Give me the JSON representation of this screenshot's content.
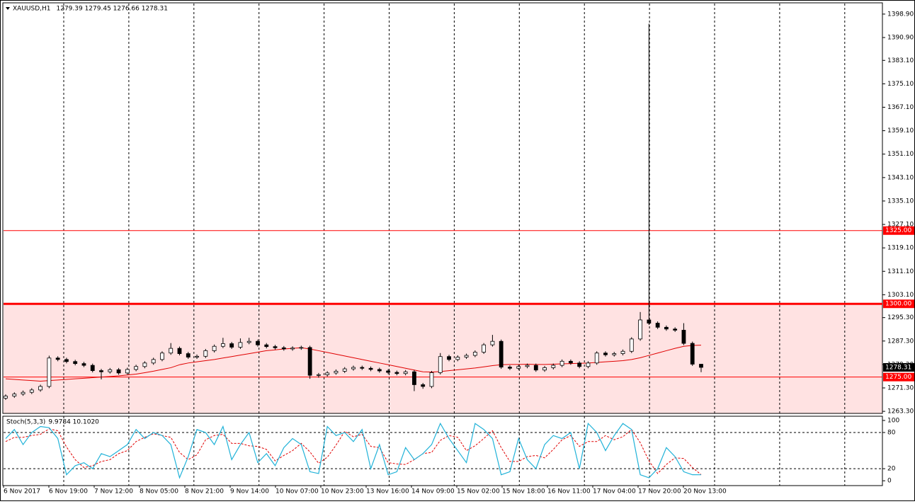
{
  "chart_data": {
    "type": "candlestick",
    "symbol": "XAUUSD,H1",
    "ohlc_text": "1279.39 1279.45 1276.66 1278.31",
    "bull_color": "#ffffff",
    "bear_color": "#000000",
    "ylim": [
      1262.6,
      1402.5
    ],
    "yticks": [
      {
        "value": 1398.9,
        "label": "1398.90"
      },
      {
        "value": 1390.9,
        "label": "1390.90"
      },
      {
        "value": 1383.1,
        "label": "1383.10"
      },
      {
        "value": 1375.1,
        "label": "1375.10"
      },
      {
        "value": 1367.1,
        "label": "1367.10"
      },
      {
        "value": 1359.1,
        "label": "1359.10"
      },
      {
        "value": 1351.1,
        "label": "1351.10"
      },
      {
        "value": 1343.1,
        "label": "1343.10"
      },
      {
        "value": 1335.1,
        "label": "1335.10"
      },
      {
        "value": 1327.1,
        "label": "1327.10"
      },
      {
        "value": 1319.1,
        "label": "1319.10"
      },
      {
        "value": 1311.1,
        "label": "1311.10"
      },
      {
        "value": 1303.1,
        "label": "1303.10"
      },
      {
        "value": 1295.3,
        "label": "1295.30"
      },
      {
        "value": 1287.3,
        "label": "1287.30"
      },
      {
        "value": 1279.3,
        "label": "1279.30"
      },
      {
        "value": 1271.3,
        "label": "1271.30"
      },
      {
        "value": 1263.3,
        "label": "1263.30"
      }
    ],
    "levels": [
      {
        "value": 1325,
        "label": "1325.00",
        "color": "#ff0000",
        "bold": false
      },
      {
        "value": 1300,
        "label": "1300.00",
        "color": "#ff0000",
        "bold": true
      },
      {
        "value": 1275,
        "label": "1275.00",
        "color": "#ff0000",
        "bold": false
      }
    ],
    "shaded_zone": {
      "top": 1300,
      "color": "#ffe2e2"
    },
    "last_price": {
      "value": 1278.31,
      "label": "1278.31"
    },
    "ma_color": "#e00000",
    "candles": [
      [
        1267.8,
        1269.1,
        1267.2,
        1268.5
      ],
      [
        1268.5,
        1269.8,
        1267.9,
        1269.2
      ],
      [
        1269.2,
        1270.4,
        1268.6,
        1269.8
      ],
      [
        1269.8,
        1271.2,
        1269.2,
        1270.6
      ],
      [
        1270.6,
        1272.4,
        1270.0,
        1271.8
      ],
      [
        1271.8,
        1282.3,
        1271.2,
        1281.5
      ],
      [
        1281.5,
        1282.1,
        1280.4,
        1281.0
      ],
      [
        1281.0,
        1281.6,
        1279.7,
        1280.3
      ],
      [
        1280.3,
        1280.9,
        1279.0,
        1279.6
      ],
      [
        1279.6,
        1280.2,
        1278.4,
        1279.0
      ],
      [
        1279.0,
        1279.6,
        1276.6,
        1277.2
      ],
      [
        1277.2,
        1277.8,
        1274.2,
        1276.8
      ],
      [
        1276.8,
        1278.1,
        1276.2,
        1277.5
      ],
      [
        1277.5,
        1278.1,
        1275.8,
        1276.4
      ],
      [
        1276.4,
        1278.2,
        1275.8,
        1277.6
      ],
      [
        1277.6,
        1279.2,
        1277.0,
        1278.6
      ],
      [
        1278.6,
        1280.4,
        1278.0,
        1279.8
      ],
      [
        1279.8,
        1281.6,
        1279.2,
        1281.0
      ],
      [
        1281.0,
        1283.8,
        1280.4,
        1283.2
      ],
      [
        1283.2,
        1286.6,
        1282.6,
        1284.8
      ],
      [
        1284.8,
        1285.4,
        1282.4,
        1283.0
      ],
      [
        1283.0,
        1283.6,
        1281.2,
        1281.8
      ],
      [
        1281.8,
        1282.7,
        1281.2,
        1282.1
      ],
      [
        1282.1,
        1284.6,
        1281.5,
        1284.0
      ],
      [
        1284.0,
        1286.1,
        1283.4,
        1285.5
      ],
      [
        1285.5,
        1288.4,
        1284.9,
        1286.4
      ],
      [
        1286.4,
        1287.0,
        1284.6,
        1285.2
      ],
      [
        1285.2,
        1288.2,
        1284.6,
        1286.8
      ],
      [
        1286.8,
        1288.4,
        1286.2,
        1287.2
      ],
      [
        1287.2,
        1287.8,
        1285.4,
        1286.0
      ],
      [
        1286.0,
        1286.6,
        1284.8,
        1285.4
      ],
      [
        1285.4,
        1286.0,
        1284.4,
        1285.0
      ],
      [
        1285.0,
        1285.6,
        1284.0,
        1284.6
      ],
      [
        1284.6,
        1285.5,
        1284.0,
        1284.9
      ],
      [
        1284.9,
        1285.7,
        1284.3,
        1285.1
      ],
      [
        1285.1,
        1285.7,
        1274.4,
        1275.6
      ],
      [
        1275.6,
        1276.4,
        1274.8,
        1275.8
      ],
      [
        1275.8,
        1277.0,
        1275.2,
        1276.4
      ],
      [
        1276.4,
        1277.6,
        1275.8,
        1277.0
      ],
      [
        1277.0,
        1278.4,
        1276.4,
        1277.8
      ],
      [
        1277.8,
        1278.9,
        1277.2,
        1278.3
      ],
      [
        1278.3,
        1278.9,
        1277.4,
        1278.0
      ],
      [
        1278.0,
        1278.6,
        1277.0,
        1277.6
      ],
      [
        1277.6,
        1278.2,
        1276.5,
        1277.1
      ],
      [
        1277.1,
        1277.7,
        1276.0,
        1276.6
      ],
      [
        1276.6,
        1277.2,
        1275.6,
        1276.2
      ],
      [
        1276.2,
        1277.4,
        1275.6,
        1276.8
      ],
      [
        1276.8,
        1277.4,
        1270.2,
        1272.4
      ],
      [
        1272.4,
        1273.0,
        1271.0,
        1271.8
      ],
      [
        1271.8,
        1277.1,
        1271.2,
        1276.5
      ],
      [
        1276.5,
        1283.2,
        1275.9,
        1282.0
      ],
      [
        1282.0,
        1282.6,
        1280.4,
        1281.0
      ],
      [
        1281.0,
        1282.4,
        1280.4,
        1281.8
      ],
      [
        1281.8,
        1283.0,
        1281.2,
        1282.4
      ],
      [
        1282.4,
        1284.1,
        1281.8,
        1283.5
      ],
      [
        1283.5,
        1286.6,
        1282.9,
        1286.0
      ],
      [
        1286.0,
        1289.4,
        1285.4,
        1287.2
      ],
      [
        1287.2,
        1287.8,
        1277.8,
        1278.4
      ],
      [
        1278.4,
        1279.0,
        1277.4,
        1278.0
      ],
      [
        1278.0,
        1279.2,
        1277.4,
        1278.6
      ],
      [
        1278.6,
        1279.6,
        1278.0,
        1279.0
      ],
      [
        1279.0,
        1279.6,
        1276.8,
        1277.4
      ],
      [
        1277.4,
        1278.8,
        1276.8,
        1278.2
      ],
      [
        1278.2,
        1279.6,
        1277.6,
        1279.0
      ],
      [
        1279.0,
        1281.0,
        1278.4,
        1280.4
      ],
      [
        1280.4,
        1281.0,
        1279.2,
        1279.8
      ],
      [
        1279.8,
        1280.4,
        1278.0,
        1278.6
      ],
      [
        1278.6,
        1280.4,
        1278.0,
        1279.8
      ],
      [
        1279.8,
        1283.8,
        1279.2,
        1283.2
      ],
      [
        1283.2,
        1283.8,
        1282.0,
        1282.6
      ],
      [
        1282.6,
        1283.6,
        1282.0,
        1283.0
      ],
      [
        1283.0,
        1284.4,
        1282.4,
        1283.8
      ],
      [
        1283.8,
        1288.6,
        1283.2,
        1288.0
      ],
      [
        1288.0,
        1297.2,
        1287.4,
        1294.5
      ],
      [
        1294.5,
        1395.6,
        1292.8,
        1293.4
      ],
      [
        1293.4,
        1294.0,
        1291.4,
        1292.0
      ],
      [
        1292.0,
        1292.6,
        1290.8,
        1291.4
      ],
      [
        1291.4,
        1292.0,
        1290.4,
        1291.0
      ],
      [
        1291.0,
        1293.4,
        1285.9,
        1286.5
      ],
      [
        1286.5,
        1287.1,
        1278.8,
        1279.4
      ],
      [
        1279.39,
        1279.45,
        1276.66,
        1278.31
      ]
    ],
    "ma": [
      1274.4,
      1274.2,
      1274.0,
      1273.8,
      1273.6,
      1273.8,
      1274.0,
      1274.2,
      1274.4,
      1274.6,
      1274.8,
      1275.0,
      1275.2,
      1275.4,
      1275.7,
      1276.0,
      1276.5,
      1277.0,
      1277.6,
      1278.2,
      1279.2,
      1279.8,
      1280.2,
      1280.6,
      1281.0,
      1281.5,
      1282.0,
      1282.5,
      1283.0,
      1283.5,
      1284.0,
      1284.3,
      1284.6,
      1284.8,
      1285.0,
      1284.6,
      1284.0,
      1283.4,
      1282.8,
      1282.2,
      1281.6,
      1281.0,
      1280.4,
      1279.8,
      1279.2,
      1278.6,
      1278.0,
      1277.4,
      1276.8,
      1276.7,
      1276.9,
      1277.2,
      1277.5,
      1277.8,
      1278.1,
      1278.5,
      1278.9,
      1279.2,
      1279.3,
      1279.3,
      1279.4,
      1279.3,
      1279.3,
      1279.4,
      1279.5,
      1279.6,
      1279.7,
      1279.8,
      1280.0,
      1280.2,
      1280.4,
      1280.6,
      1281.0,
      1281.6,
      1282.4,
      1283.2,
      1284.0,
      1284.8,
      1285.5,
      1285.8,
      1285.9
    ],
    "time_labels": [
      "6 Nov 2017",
      "6 Nov 19:00",
      "7 Nov 12:00",
      "8 Nov 05:00",
      "8 Nov 21:00",
      "9 Nov 14:00",
      "10 Nov 07:00",
      "10 Nov 23:00",
      "13 Nov 16:00",
      "14 Nov 09:00",
      "15 Nov 02:00",
      "15 Nov 18:00",
      "16 Nov 11:00",
      "17 Nov 04:00",
      "17 Nov 20:00",
      "20 Nov 13:00"
    ],
    "stoch": {
      "name": "Stoch(5,3,3)",
      "readout": "9.9784 10.1020",
      "ylim": [
        -8,
        107
      ],
      "yticks": [
        100,
        80,
        20,
        0
      ],
      "levels": [
        80,
        20
      ],
      "k_color": "#20b2d8",
      "d_color": "#e00000",
      "k": [
        70,
        85,
        60,
        80,
        90,
        88,
        70,
        10,
        25,
        30,
        20,
        45,
        40,
        50,
        60,
        85,
        70,
        80,
        75,
        60,
        5,
        40,
        85,
        80,
        60,
        90,
        35,
        60,
        80,
        30,
        45,
        25,
        55,
        70,
        60,
        15,
        12,
        90,
        75,
        80,
        65,
        85,
        20,
        60,
        10,
        15,
        55,
        35,
        45,
        60,
        95,
        70,
        50,
        30,
        95,
        85,
        70,
        10,
        15,
        70,
        35,
        20,
        60,
        75,
        70,
        80,
        20,
        95,
        80,
        50,
        75,
        95,
        85,
        10,
        5,
        20,
        55,
        40,
        15,
        10,
        9.9784
      ],
      "d": [
        65,
        72,
        72,
        75,
        77,
        86,
        83,
        56,
        35,
        22,
        25,
        32,
        35,
        45,
        50,
        65,
        72,
        78,
        75,
        72,
        47,
        35,
        43,
        68,
        75,
        77,
        62,
        62,
        58,
        57,
        52,
        33,
        42,
        50,
        62,
        48,
        29,
        39,
        59,
        82,
        73,
        77,
        57,
        55,
        30,
        28,
        27,
        35,
        45,
        47,
        67,
        75,
        72,
        50,
        58,
        70,
        83,
        55,
        32,
        32,
        40,
        42,
        38,
        52,
        68,
        75,
        57,
        65,
        65,
        75,
        68,
        73,
        85,
        63,
        33,
        12,
        27,
        38,
        37,
        22,
        10.102
      ]
    }
  }
}
